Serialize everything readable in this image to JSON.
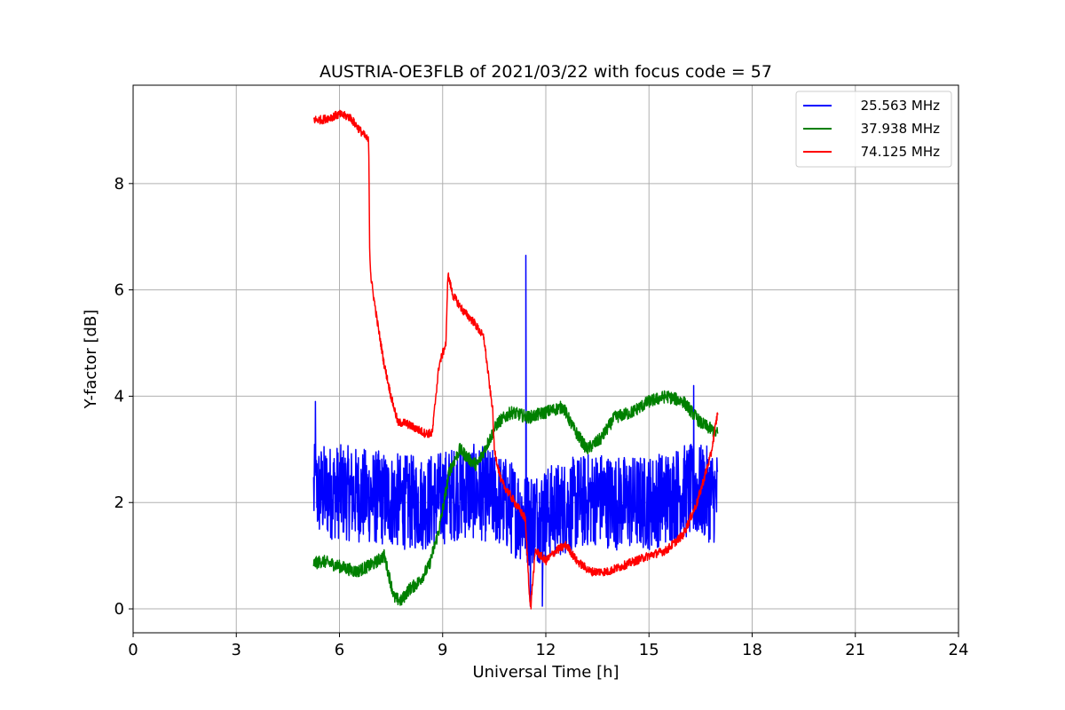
{
  "chart_data": {
    "type": "line",
    "title": "AUSTRIA-OE3FLB of 2021/03/22 with focus code = 57",
    "xlabel": "Universal Time [h]",
    "ylabel": "Y-factor [dB]",
    "xlim": [
      0,
      24
    ],
    "ylim": [
      -0.45,
      9.85
    ],
    "xticks": [
      0,
      3,
      6,
      9,
      12,
      15,
      18,
      21,
      24
    ],
    "yticks": [
      0,
      2,
      4,
      6,
      8
    ],
    "grid": true,
    "legend_position": "top-right",
    "series": [
      {
        "name": "25.563 MHz",
        "color": "#0000ff",
        "noise": 0.9,
        "spikes": [
          [
            11.42,
            6.65
          ],
          [
            11.55,
            0.05
          ],
          [
            11.9,
            0.05
          ],
          [
            5.3,
            3.9
          ],
          [
            16.3,
            4.2
          ]
        ],
        "x": [
          5.25,
          6,
          7,
          8,
          8.5,
          9,
          9.5,
          10,
          10.5,
          11,
          11.5,
          12,
          12.5,
          13,
          13.5,
          14,
          14.5,
          15,
          15.5,
          16,
          16.5,
          17
        ],
        "y": [
          2.2,
          2.2,
          2.1,
          2.0,
          2.0,
          2.1,
          2.2,
          2.2,
          2.1,
          1.9,
          1.7,
          1.8,
          1.9,
          2.0,
          2.1,
          2.0,
          2.0,
          2.0,
          2.1,
          2.2,
          2.2,
          2.1
        ]
      },
      {
        "name": "37.938 MHz",
        "color": "#008000",
        "noise": 0.12,
        "spikes": [],
        "x": [
          5.25,
          5.5,
          6,
          6.5,
          7,
          7.3,
          7.6,
          7.8,
          8,
          8.3,
          8.6,
          8.9,
          9.2,
          9.5,
          9.8,
          10,
          10.3,
          10.6,
          11,
          11.5,
          12,
          12.5,
          12.8,
          13.2,
          13.6,
          14,
          14.5,
          15,
          15.5,
          16,
          16.5,
          17
        ],
        "y": [
          0.85,
          0.9,
          0.8,
          0.7,
          0.85,
          1.0,
          0.2,
          0.15,
          0.35,
          0.5,
          0.8,
          1.5,
          2.6,
          3.0,
          2.8,
          2.7,
          3.1,
          3.5,
          3.7,
          3.6,
          3.7,
          3.8,
          3.4,
          3.0,
          3.2,
          3.6,
          3.7,
          3.9,
          4.0,
          3.9,
          3.5,
          3.3
        ]
      },
      {
        "name": "74.125 MHz",
        "color": "#ff0000",
        "noise": 0.08,
        "spikes": [
          [
            11.57,
            0.0
          ]
        ],
        "x": [
          5.25,
          5.5,
          6,
          6.3,
          6.6,
          6.85,
          6.88,
          6.92,
          7.1,
          7.3,
          7.5,
          7.7,
          7.9,
          8.2,
          8.5,
          8.7,
          8.8,
          8.9,
          9.1,
          9.15,
          9.3,
          9.6,
          9.9,
          10.2,
          10.4,
          10.45,
          10.5,
          10.7,
          11,
          11.4,
          11.55,
          11.7,
          12,
          12.3,
          12.6,
          12.9,
          13.3,
          13.8,
          14.2,
          14.6,
          15,
          15.5,
          16,
          16.4,
          16.8,
          17
        ],
        "y": [
          9.2,
          9.2,
          9.3,
          9.25,
          9.0,
          8.8,
          6.7,
          6.2,
          5.4,
          4.6,
          4.0,
          3.5,
          3.5,
          3.4,
          3.3,
          3.3,
          4.0,
          4.6,
          5.0,
          6.3,
          5.9,
          5.6,
          5.4,
          5.1,
          4.0,
          3.8,
          3.0,
          2.4,
          2.1,
          1.7,
          0.0,
          1.1,
          0.9,
          1.1,
          1.2,
          0.9,
          0.7,
          0.7,
          0.8,
          0.9,
          1.0,
          1.1,
          1.4,
          2.0,
          2.9,
          3.7
        ]
      }
    ]
  }
}
